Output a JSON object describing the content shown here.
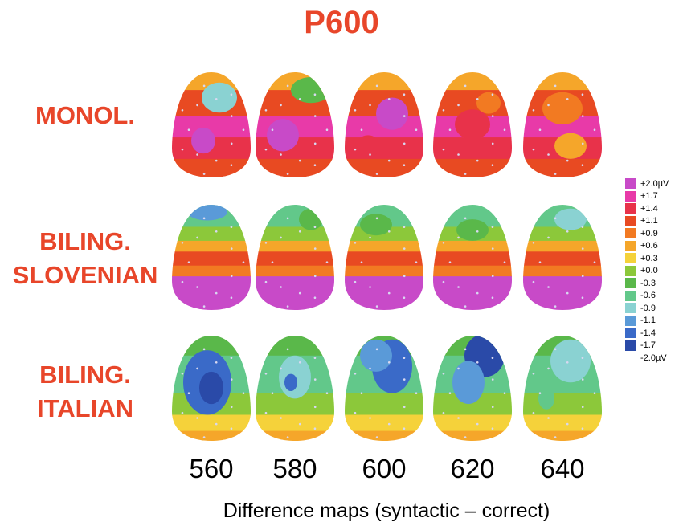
{
  "title": "P600",
  "rows": [
    {
      "label_lines": [
        "MONOL."
      ],
      "scheme": "monol"
    },
    {
      "label_lines": [
        "BILING.",
        "SLOVENIAN"
      ],
      "scheme": "slov"
    },
    {
      "label_lines": [
        "BILING.",
        "ITALIAN"
      ],
      "scheme": "ital"
    }
  ],
  "times": [
    "560",
    "580",
    "600",
    "620",
    "640"
  ],
  "xlabel": "Difference maps (syntactic – correct)",
  "legend": [
    {
      "label": "+2.0µV",
      "color": "#c84ac8"
    },
    {
      "label": "+1.7",
      "color": "#e83aa8"
    },
    {
      "label": "+1.4",
      "color": "#e8324a"
    },
    {
      "label": "+1.1",
      "color": "#e84a22"
    },
    {
      "label": "+0.9",
      "color": "#f27a22"
    },
    {
      "label": "+0.6",
      "color": "#f5a62a"
    },
    {
      "label": "+0.3",
      "color": "#f5d23a"
    },
    {
      "label": "+0.0",
      "color": "#8cc83a"
    },
    {
      "label": "-0.3",
      "color": "#5ab84a"
    },
    {
      "label": "-0.6",
      "color": "#62c88a"
    },
    {
      "label": "-0.9",
      "color": "#8ad2d2"
    },
    {
      "label": "-1.1",
      "color": "#5a9ad8"
    },
    {
      "label": "-1.4",
      "color": "#3a6ac8"
    },
    {
      "label": "-1.7",
      "color": "#2a4aa8"
    },
    {
      "label": "-2.0µV",
      "color": "#ffffff"
    }
  ]
}
